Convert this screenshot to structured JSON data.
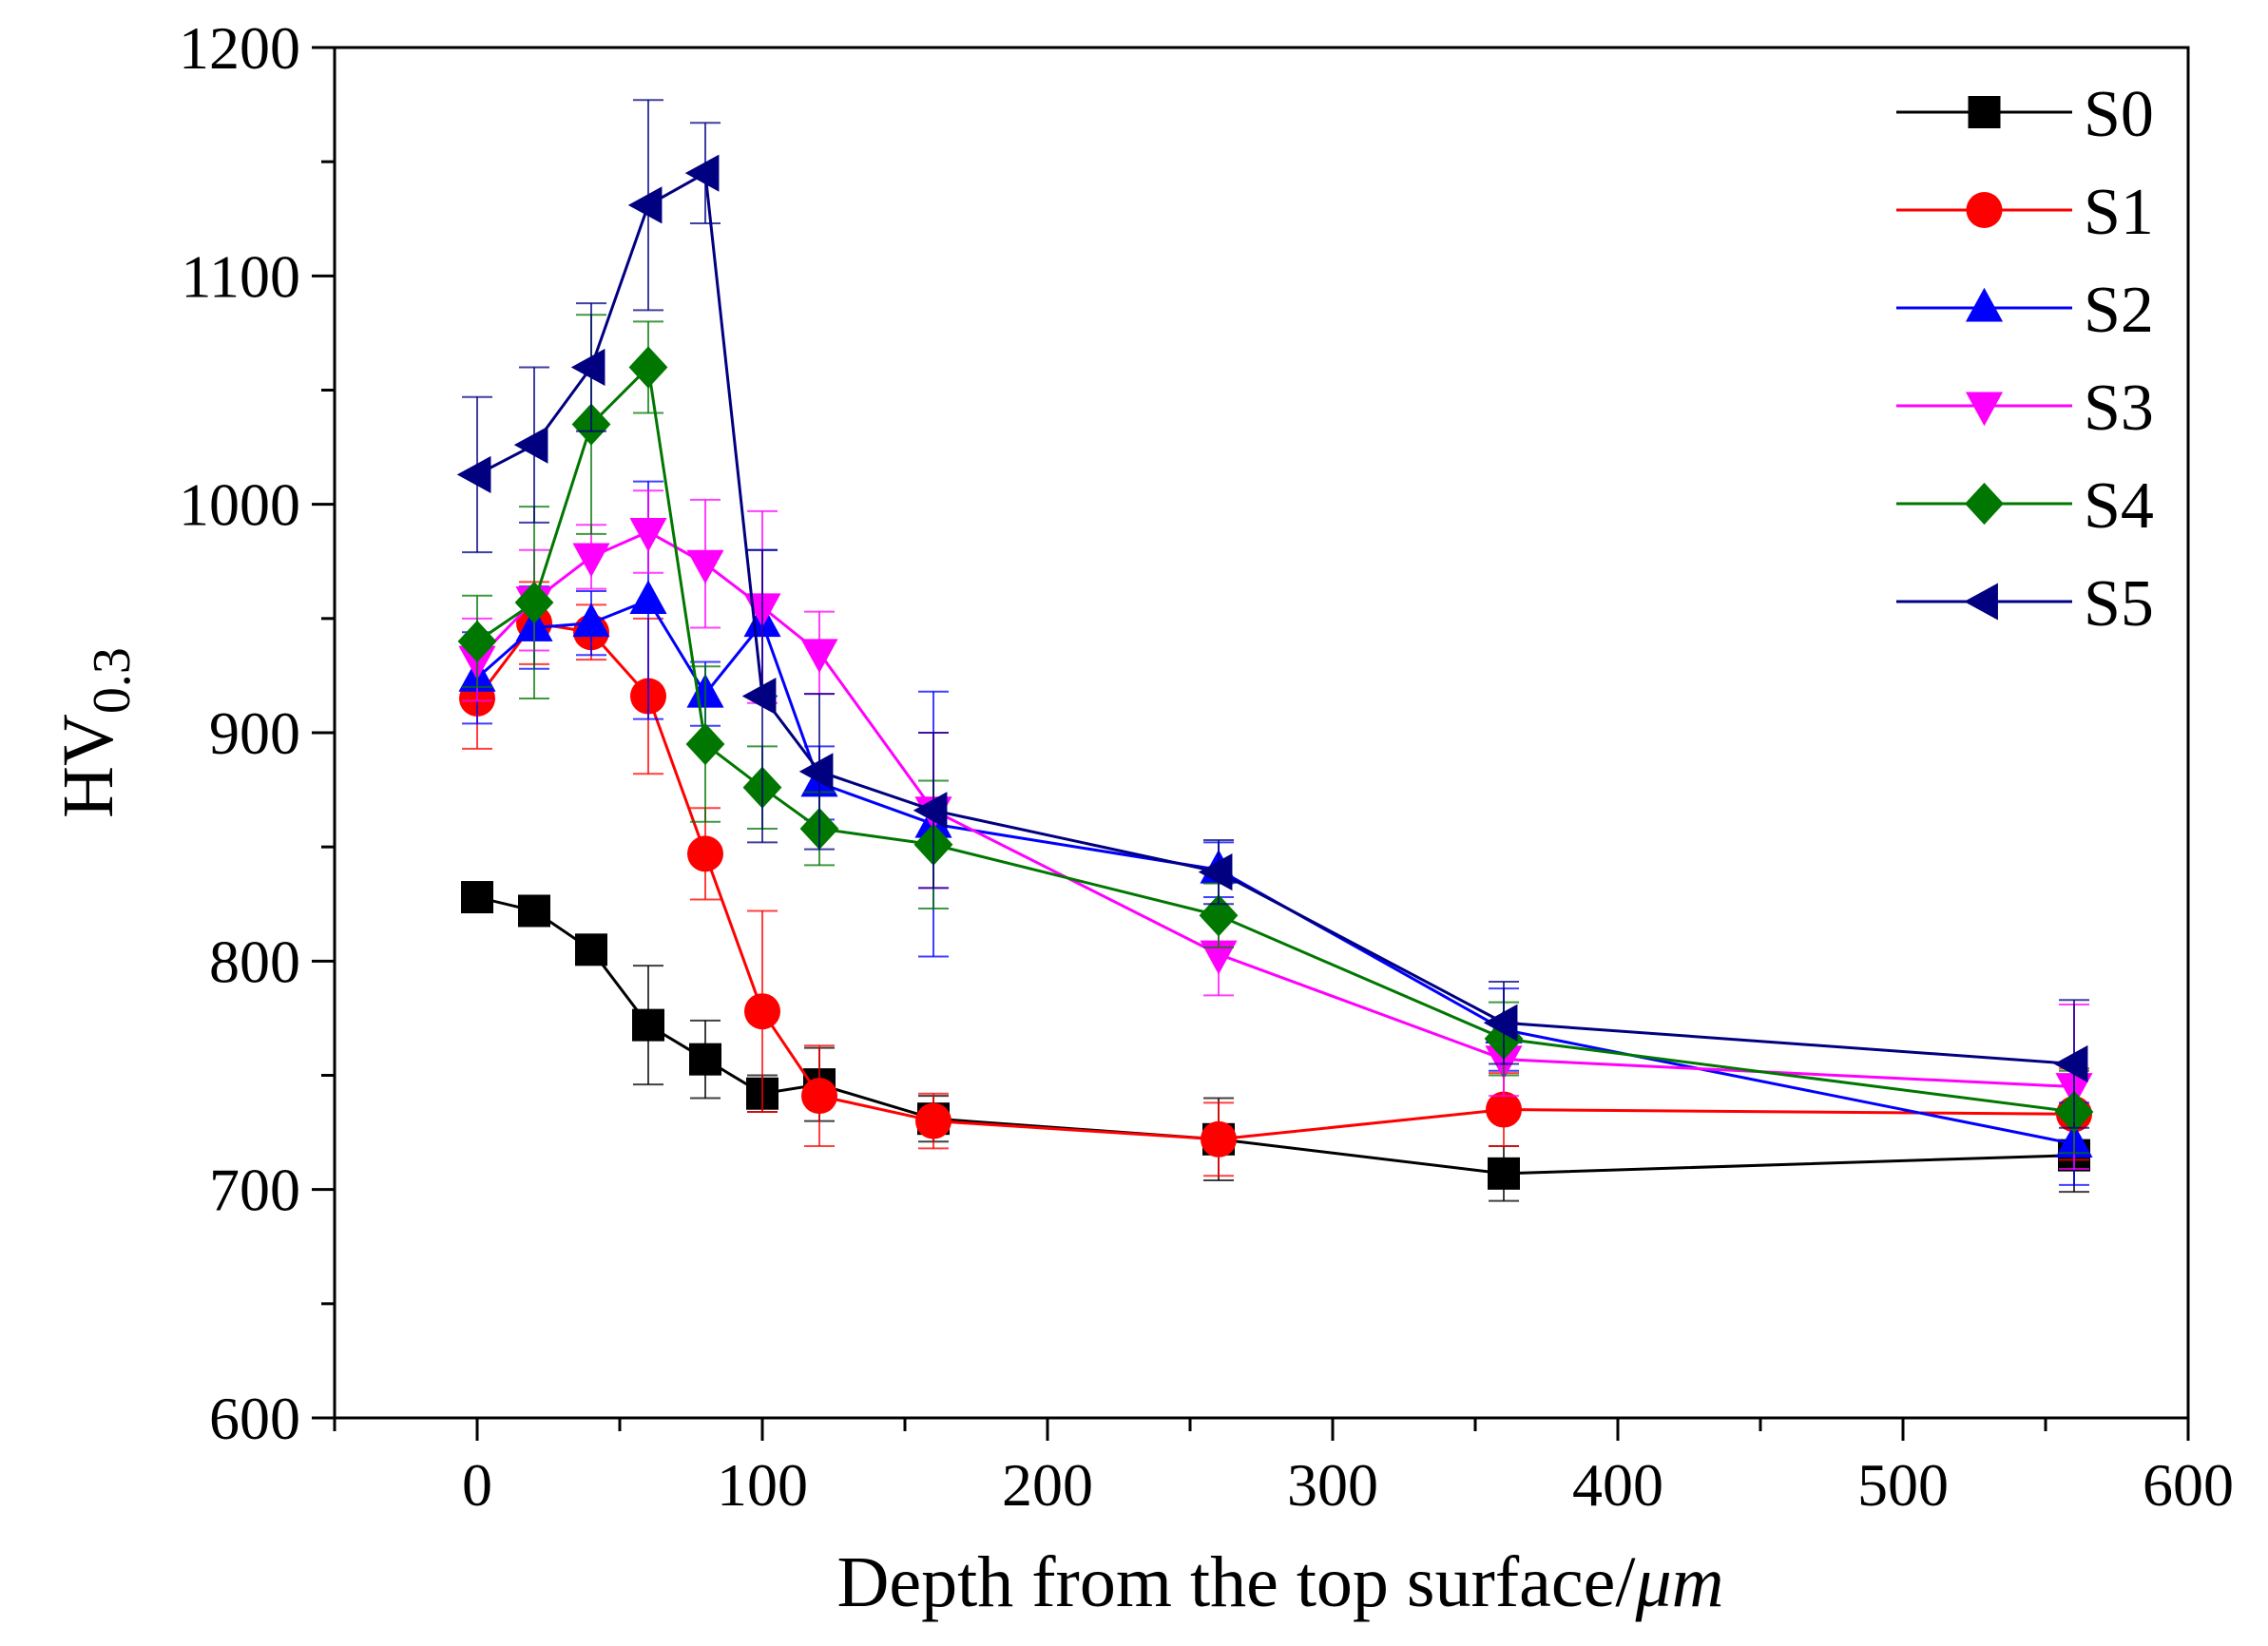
{
  "chart_data": {
    "type": "line",
    "title": "",
    "xlabel_main": "Depth from the top surface/",
    "xlabel_unit": "μm",
    "ylabel_main": "HV",
    "ylabel_sub": "0.3",
    "xlim": [
      -50,
      600
    ],
    "ylim": [
      600,
      1200
    ],
    "xticks": [
      0,
      100,
      200,
      300,
      400,
      500,
      600
    ],
    "xtick_labels": [
      "0",
      "100",
      "200",
      "300",
      "400",
      "500",
      "600"
    ],
    "yticks": [
      600,
      700,
      800,
      900,
      1000,
      1100,
      1200
    ],
    "ytick_labels": [
      "600",
      "700",
      "800",
      "900",
      "1000",
      "1100",
      "1200"
    ],
    "legend_position": "top-right",
    "series": [
      {
        "name": "S0",
        "color": "#000000",
        "marker": "square",
        "x": [
          0,
          20,
          40,
          60,
          80,
          100,
          120,
          160,
          260,
          360,
          560
        ],
        "y": [
          828,
          822,
          805,
          772,
          757,
          742,
          746,
          731,
          722,
          707,
          715
        ],
        "err": [
          6,
          6,
          6,
          26,
          17,
          8,
          16,
          10,
          18,
          12,
          16
        ]
      },
      {
        "name": "S1",
        "color": "#ff0000",
        "marker": "circle",
        "x": [
          0,
          20,
          40,
          60,
          80,
          100,
          120,
          160,
          260,
          360,
          560
        ],
        "y": [
          915,
          948,
          944,
          916,
          847,
          778,
          741,
          730,
          722,
          735,
          733
        ],
        "err": [
          22,
          18,
          12,
          34,
          20,
          44,
          22,
          12,
          16,
          16,
          20
        ]
      },
      {
        "name": "S2",
        "color": "#0000ff",
        "marker": "triangle-up",
        "x": [
          0,
          20,
          40,
          60,
          80,
          100,
          120,
          160,
          260,
          360,
          560
        ],
        "y": [
          924,
          946,
          948,
          958,
          917,
          948,
          878,
          860,
          840,
          770,
          720
        ],
        "err": [
          20,
          18,
          14,
          52,
          14,
          32,
          16,
          58,
          12,
          18,
          18
        ]
      },
      {
        "name": "S3",
        "color": "#ff00ff",
        "marker": "triangle-down",
        "x": [
          0,
          20,
          40,
          60,
          80,
          100,
          120,
          160,
          260,
          360,
          560
        ],
        "y": [
          932,
          958,
          977,
          988,
          974,
          955,
          935,
          866,
          803,
          757,
          745
        ],
        "err": [
          18,
          22,
          14,
          18,
          28,
          42,
          18,
          34,
          18,
          16,
          36
        ]
      },
      {
        "name": "S4",
        "color": "#007700",
        "marker": "diamond",
        "x": [
          0,
          20,
          40,
          60,
          80,
          100,
          120,
          160,
          260,
          360,
          560
        ],
        "y": [
          940,
          957,
          1035,
          1060,
          895,
          876,
          858,
          851,
          820,
          766,
          734
        ],
        "err": [
          20,
          42,
          48,
          20,
          34,
          18,
          16,
          28,
          14,
          16,
          18
        ]
      },
      {
        "name": "S5",
        "color": "#000080",
        "marker": "triangle-left",
        "x": [
          0,
          20,
          40,
          60,
          80,
          100,
          120,
          160,
          260,
          360,
          560
        ],
        "y": [
          1013,
          1026,
          1060,
          1131,
          1145,
          916,
          883,
          866,
          839,
          773,
          755
        ],
        "err": [
          34,
          34,
          28,
          46,
          22,
          64,
          34,
          34,
          14,
          18,
          28
        ]
      }
    ]
  }
}
